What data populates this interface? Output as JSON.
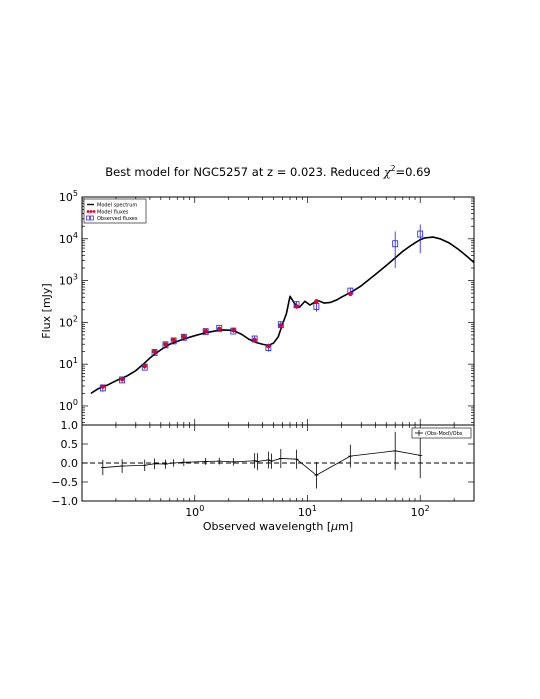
{
  "chart_data": [
    {
      "type": "line",
      "title": "Best model for NGC5257 at z = 0.023. Reduced",
      "title_chi": "χ",
      "title_chi_exp": "2",
      "title_tail": "=0.69",
      "ylabel": "Flux [mJy]",
      "xscale": "log",
      "yscale": "log",
      "xlim": [
        0.1,
        300
      ],
      "ylim": [
        0.35,
        100000
      ],
      "x_ticks": [
        {
          "value": 1,
          "base": "10",
          "exp": "0"
        },
        {
          "value": 10,
          "base": "10",
          "exp": "1"
        },
        {
          "value": 100,
          "base": "10",
          "exp": "2"
        }
      ],
      "y_ticks": [
        {
          "value": 1,
          "base": "10",
          "exp": "0"
        },
        {
          "value": 10,
          "base": "10",
          "exp": "1"
        },
        {
          "value": 100,
          "base": "10",
          "exp": "2"
        },
        {
          "value": 1000,
          "base": "10",
          "exp": "3"
        },
        {
          "value": 10000,
          "base": "10",
          "exp": "4"
        },
        {
          "value": 100000,
          "base": "10",
          "exp": "5"
        }
      ],
      "legend_position": "top-left",
      "legend": [
        {
          "label": "Model spectrum",
          "kind": "line"
        },
        {
          "label": "Model fluxes",
          "kind": "dot"
        },
        {
          "label": "Observed fluxes",
          "kind": "box"
        }
      ],
      "series": [
        {
          "name": "Model spectrum",
          "color": "#000000",
          "x": [
            0.12,
            0.13,
            0.14,
            0.15,
            0.17,
            0.2,
            0.25,
            0.3,
            0.35,
            0.4,
            0.45,
            0.5,
            0.6,
            0.7,
            0.8,
            1.0,
            1.2,
            1.5,
            1.8,
            2.2,
            2.6,
            3.0,
            3.5,
            4.0,
            4.5,
            5.0,
            5.5,
            6.0,
            6.5,
            7.0,
            7.7,
            8.5,
            9.5,
            10.5,
            11.5,
            12.5,
            14,
            16,
            18,
            20,
            25,
            30,
            40,
            50,
            60,
            70,
            80,
            90,
            100,
            110,
            130,
            150,
            180,
            220,
            260,
            300
          ],
          "y": [
            2.0,
            2.3,
            2.6,
            2.8,
            3.2,
            4.0,
            5.2,
            7.0,
            10,
            14,
            18,
            22,
            30,
            35,
            40,
            48,
            55,
            62,
            66,
            64,
            52,
            40,
            33,
            30,
            28,
            32,
            45,
            90,
            160,
            420,
            280,
            230,
            320,
            260,
            300,
            330,
            290,
            300,
            340,
            400,
            550,
            750,
            1400,
            2300,
            3500,
            5000,
            6500,
            8000,
            9500,
            10500,
            11000,
            10000,
            8000,
            5500,
            3800,
            2700
          ]
        },
        {
          "name": "Model fluxes",
          "color": "#e2001a",
          "x": [
            0.153,
            0.227,
            0.36,
            0.44,
            0.55,
            0.65,
            0.8,
            1.25,
            1.65,
            2.2,
            3.4,
            4.5,
            5.8,
            8.0,
            12,
            24
          ],
          "y": [
            2.9,
            4.4,
            9,
            20,
            30,
            38,
            46,
            63,
            70,
            65,
            38,
            27,
            85,
            240,
            320,
            480
          ]
        },
        {
          "name": "Observed fluxes",
          "color": "#1f1fd6",
          "x": [
            0.153,
            0.227,
            0.36,
            0.44,
            0.55,
            0.65,
            0.8,
            1.25,
            1.65,
            2.2,
            3.4,
            4.5,
            5.8,
            8.0,
            12,
            24,
            60,
            100
          ],
          "y": [
            2.7,
            4.2,
            8.5,
            19,
            29,
            36,
            44,
            60,
            72,
            62,
            40,
            25,
            88,
            265,
            240,
            560,
            7600,
            13000
          ],
          "err_low": [
            2.2,
            3.6,
            7.6,
            17,
            26,
            33,
            40,
            55,
            66,
            56,
            34,
            20,
            70,
            210,
            180,
            450,
            2000,
            4500
          ],
          "err_high": [
            3.2,
            4.8,
            9.5,
            21,
            32,
            40,
            48,
            66,
            78,
            68,
            47,
            31,
            106,
            320,
            300,
            670,
            15000,
            22000
          ]
        }
      ]
    },
    {
      "type": "scatter",
      "xlabel_prefix": "Observed wavelength [",
      "xlabel_mu": "μ",
      "xlabel_suffix": "m]",
      "xscale": "log",
      "xlim": [
        0.1,
        300
      ],
      "ylim": [
        -1.0,
        1.0
      ],
      "y_ticks": [
        "1.0",
        "0.5",
        "0.0",
        "−0.5",
        "−1.0"
      ],
      "y_tick_values": [
        1.0,
        0.5,
        0.0,
        -0.5,
        -1.0
      ],
      "x_ticks": [
        {
          "value": 1,
          "base": "10",
          "exp": "0"
        },
        {
          "value": 10,
          "base": "10",
          "exp": "1"
        },
        {
          "value": 100,
          "base": "10",
          "exp": "2"
        }
      ],
      "legend_position": "top-right",
      "legend": [
        {
          "label": "(Obs-Mod)/Obs",
          "kind": "errorbar"
        }
      ],
      "series": [
        {
          "name": "(Obs-Mod)/Obs",
          "color": "#000000",
          "x": [
            0.153,
            0.227,
            0.36,
            0.44,
            0.55,
            0.65,
            0.8,
            1.25,
            1.65,
            2.2,
            3.4,
            3.6,
            4.5,
            4.8,
            5.8,
            8.0,
            12,
            24,
            60,
            100
          ],
          "y": [
            -0.12,
            -0.08,
            -0.06,
            -0.02,
            -0.03,
            0.0,
            0.02,
            0.04,
            0.05,
            0.03,
            0.06,
            0.04,
            0.08,
            0.05,
            0.12,
            0.1,
            -0.32,
            0.18,
            0.32,
            0.2
          ],
          "err": [
            0.2,
            0.18,
            0.15,
            0.14,
            0.12,
            0.1,
            0.1,
            0.09,
            0.09,
            0.1,
            0.2,
            0.22,
            0.22,
            0.2,
            0.25,
            0.25,
            0.35,
            0.3,
            0.5,
            0.6
          ]
        }
      ],
      "reference_line": {
        "y": 0.0,
        "style": "dashed"
      }
    }
  ]
}
